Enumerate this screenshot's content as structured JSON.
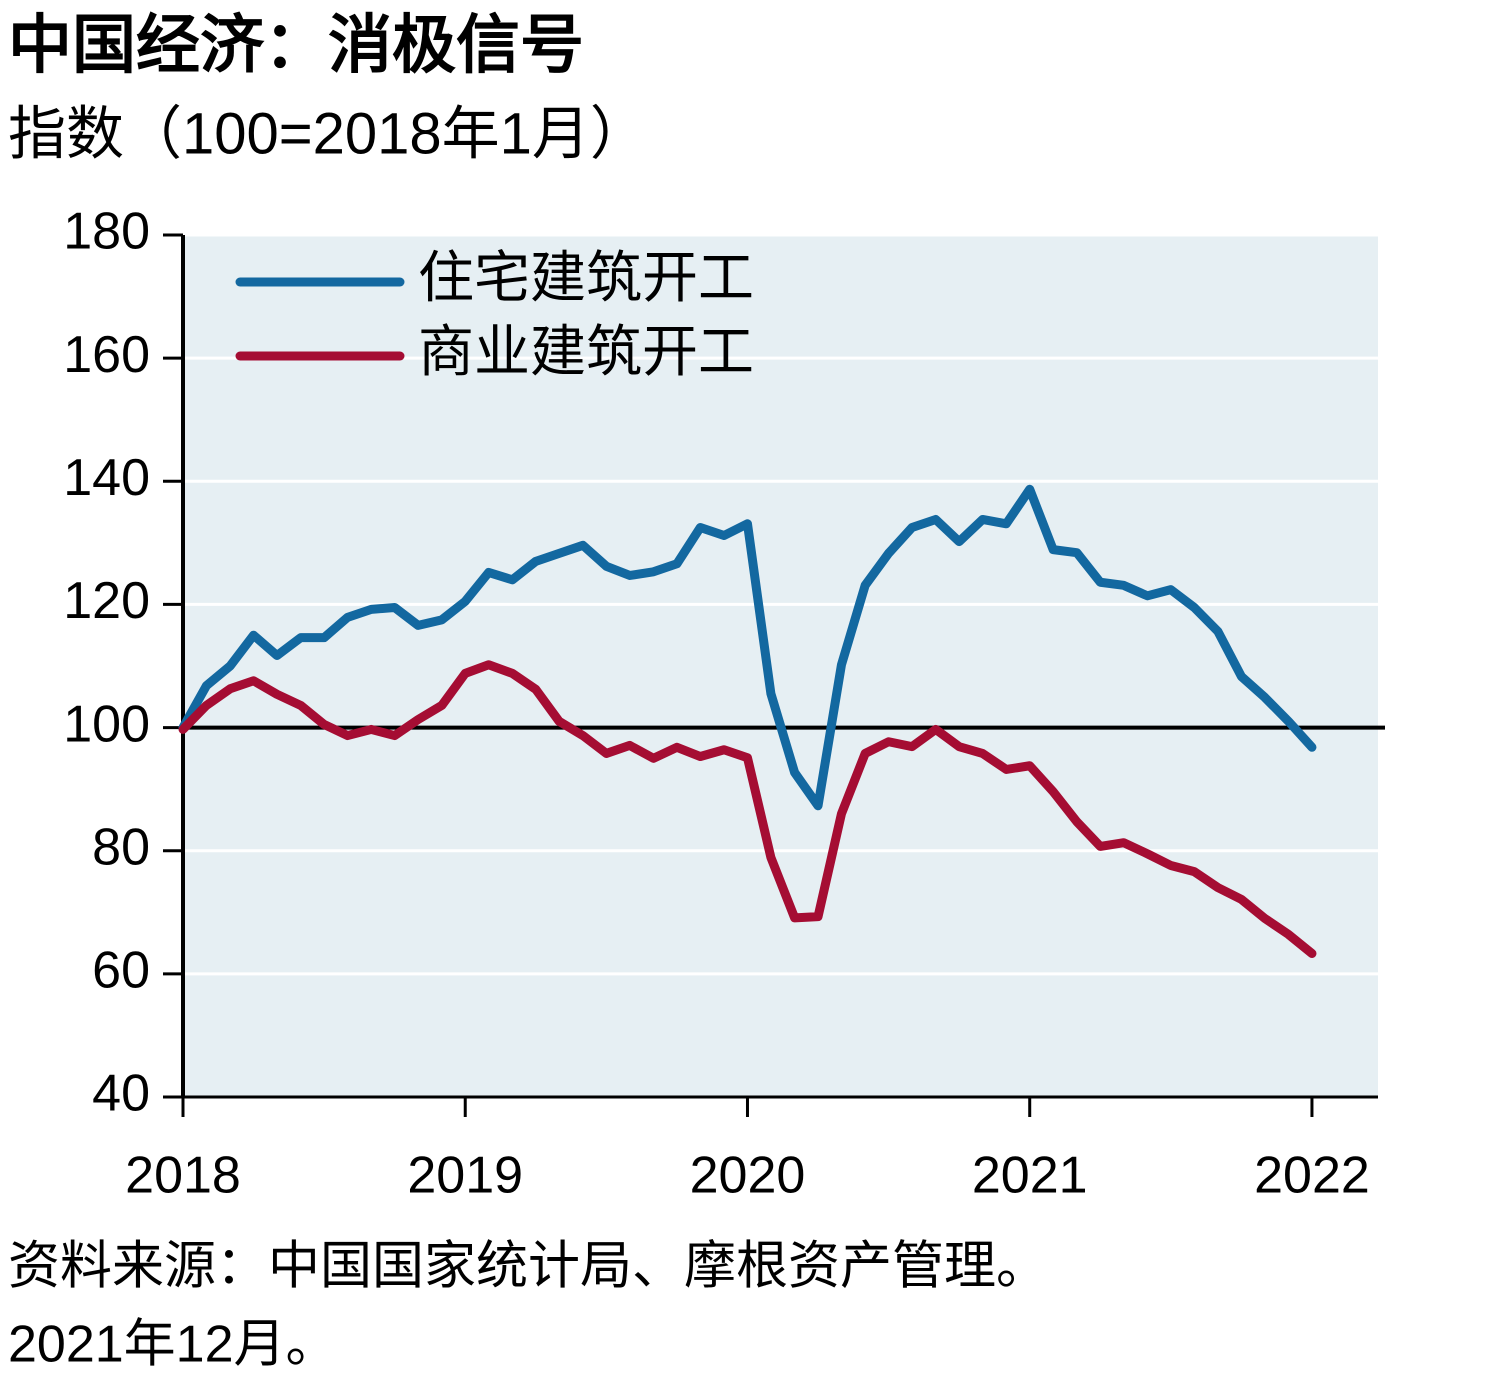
{
  "chart_data": {
    "type": "line",
    "title": "中国经济：消极信号",
    "subtitle": "指数（100=2018年1月）",
    "notes": [
      "资料来源：中国国家统计局、摩根资产管理。",
      "2021年12月。"
    ],
    "x": [
      2018,
      2018.083,
      2018.167,
      2018.25,
      2018.333,
      2018.417,
      2018.5,
      2018.583,
      2018.667,
      2018.75,
      2018.833,
      2018.917,
      2019,
      2019.083,
      2019.167,
      2019.25,
      2019.333,
      2019.417,
      2019.5,
      2019.583,
      2019.667,
      2019.75,
      2019.833,
      2019.917,
      2020,
      2020.083,
      2020.167,
      2020.25,
      2020.333,
      2020.417,
      2020.5,
      2020.583,
      2020.667,
      2020.75,
      2020.833,
      2020.917,
      2021,
      2021.083,
      2021.167,
      2021.25,
      2021.333,
      2021.417,
      2021.5,
      2021.583,
      2021.667,
      2021.75,
      2021.833,
      2021.917,
      2022
    ],
    "series": [
      {
        "name": "住宅建筑开工",
        "color": "#1368a0",
        "values": [
          100,
          106.8,
          110,
          115,
          111.7,
          114.6,
          114.6,
          117.9,
          119.2,
          119.5,
          116.6,
          117.5,
          120.5,
          125.2,
          124,
          127,
          128.3,
          129.6,
          126.2,
          124.7,
          125.3,
          126.6,
          132.5,
          131.2,
          133.1,
          105.5,
          92.7,
          87.3,
          110.2,
          123.1,
          128.3,
          132.5,
          133.8,
          130.2,
          133.8,
          133.1,
          138.7,
          128.9,
          128.4,
          123.6,
          123.1,
          121.4,
          122.4,
          119.5,
          115.6,
          108.3,
          104.9,
          101,
          96.8
        ]
      },
      {
        "name": "商业建筑开工",
        "color": "#a50d33",
        "values": [
          99.7,
          103.6,
          106.3,
          107.6,
          105.4,
          103.6,
          100.5,
          98.7,
          99.7,
          98.7,
          101.3,
          103.6,
          108.8,
          110.2,
          108.8,
          106.2,
          101,
          98.7,
          95.8,
          97.1,
          95,
          96.8,
          95.3,
          96.4,
          95.1,
          78.9,
          69.1,
          69.3,
          86,
          95.8,
          97.7,
          96.9,
          99.7,
          96.9,
          95.8,
          93.2,
          93.8,
          89.6,
          84.7,
          80.7,
          81.3,
          79.5,
          77.6,
          76.6,
          74,
          72.1,
          69,
          66.4,
          63.3
        ]
      }
    ],
    "xlim": [
      2018,
      2022.234
    ],
    "xticks": [
      2018,
      2019,
      2020,
      2021,
      2022
    ],
    "ylim": [
      40,
      180
    ],
    "yticks": [
      40,
      60,
      80,
      100,
      120,
      140,
      160,
      180
    ],
    "reference_line": 100,
    "grid": true,
    "legend": "top-left",
    "plot_background": "#e6eff3"
  }
}
